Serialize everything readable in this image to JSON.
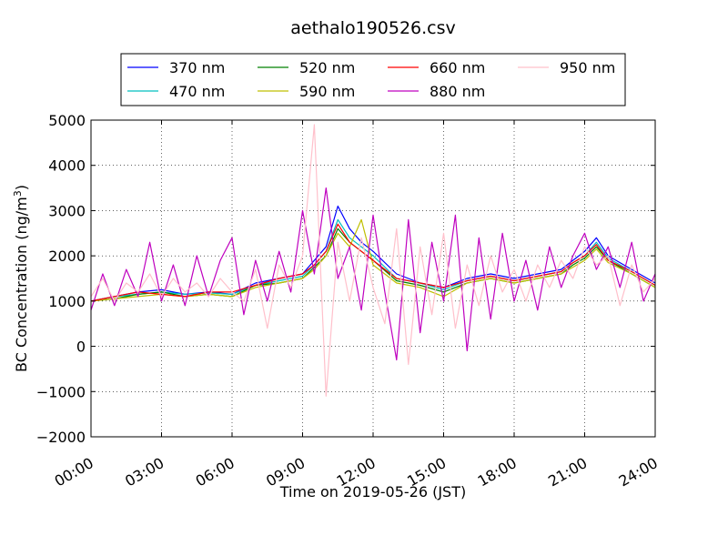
{
  "chart_data": {
    "type": "line",
    "title": "aethalo190526.csv",
    "xlabel": "Time on 2019-05-26 (JST)",
    "ylabel": "BC Concentration (ng/m³)",
    "ylabel_main": "BC Concentration (ng/m",
    "ylabel_sup": "3",
    "ylabel_end": ")",
    "xlim": [
      "00:00",
      "24:00"
    ],
    "ylim": [
      -2000,
      5000
    ],
    "x_ticks": [
      "00:00",
      "03:00",
      "06:00",
      "09:00",
      "12:00",
      "15:00",
      "18:00",
      "21:00",
      "24:00"
    ],
    "y_ticks": [
      -2000,
      -1000,
      0,
      1000,
      2000,
      3000,
      4000,
      5000
    ],
    "y_tick_labels": [
      "−2000",
      "−1000",
      "0",
      "1000",
      "2000",
      "3000",
      "4000",
      "5000"
    ],
    "grid": true,
    "legend_placement": "above plot, centered",
    "series": [
      {
        "name": "370 nm",
        "color": "#0000ff",
        "x": [
          "00:00",
          "01:00",
          "02:00",
          "03:00",
          "04:00",
          "05:00",
          "06:00",
          "07:00",
          "08:00",
          "09:00",
          "09:30",
          "10:00",
          "10:30",
          "11:00",
          "11:30",
          "12:00",
          "13:00",
          "14:00",
          "15:00",
          "16:00",
          "17:00",
          "18:00",
          "19:00",
          "20:00",
          "20:30",
          "21:00",
          "21:30",
          "22:00",
          "23:00",
          "24:00"
        ],
        "y": [
          1000,
          1100,
          1200,
          1250,
          1150,
          1200,
          1150,
          1400,
          1500,
          1600,
          1900,
          2200,
          3100,
          2600,
          2300,
          2100,
          1600,
          1400,
          1300,
          1500,
          1600,
          1500,
          1600,
          1700,
          1900,
          2100,
          2400,
          2000,
          1700,
          1400
        ]
      },
      {
        "name": "470 nm",
        "color": "#00bfbf",
        "x": [
          "00:00",
          "01:00",
          "02:00",
          "03:00",
          "04:00",
          "05:00",
          "06:00",
          "07:00",
          "08:00",
          "09:00",
          "09:30",
          "10:00",
          "10:30",
          "11:00",
          "11:30",
          "12:00",
          "13:00",
          "14:00",
          "15:00",
          "16:00",
          "17:00",
          "18:00",
          "19:00",
          "20:00",
          "20:30",
          "21:00",
          "21:30",
          "22:00",
          "23:00",
          "24:00"
        ],
        "y": [
          1000,
          1100,
          1150,
          1200,
          1150,
          1180,
          1150,
          1350,
          1450,
          1550,
          1800,
          2100,
          2800,
          2400,
          2200,
          2000,
          1500,
          1400,
          1250,
          1450,
          1550,
          1450,
          1550,
          1650,
          1850,
          2000,
          2300,
          1950,
          1650,
          1350
        ]
      },
      {
        "name": "520 nm",
        "color": "#008000",
        "x": [
          "00:00",
          "01:00",
          "02:00",
          "03:00",
          "04:00",
          "05:00",
          "06:00",
          "07:00",
          "08:00",
          "09:00",
          "09:30",
          "10:00",
          "10:30",
          "11:00",
          "11:30",
          "12:00",
          "13:00",
          "14:00",
          "15:00",
          "16:00",
          "17:00",
          "18:00",
          "19:00",
          "20:00",
          "20:30",
          "21:00",
          "21:30",
          "22:00",
          "23:00",
          "24:00"
        ],
        "y": [
          1000,
          1050,
          1150,
          1200,
          1100,
          1150,
          1100,
          1350,
          1400,
          1500,
          1750,
          2000,
          2600,
          2300,
          2100,
          1900,
          1450,
          1350,
          1200,
          1400,
          1500,
          1400,
          1500,
          1600,
          1800,
          1950,
          2200,
          1900,
          1600,
          1300
        ]
      },
      {
        "name": "590 nm",
        "color": "#bfbf00",
        "x": [
          "00:00",
          "01:00",
          "02:00",
          "03:00",
          "04:00",
          "05:00",
          "06:00",
          "07:00",
          "08:00",
          "09:00",
          "09:30",
          "10:00",
          "10:30",
          "11:00",
          "11:30",
          "12:00",
          "13:00",
          "14:00",
          "15:00",
          "16:00",
          "17:00",
          "18:00",
          "19:00",
          "20:00",
          "20:30",
          "21:00",
          "21:30",
          "22:00",
          "23:00",
          "24:00"
        ],
        "y": [
          1000,
          1050,
          1100,
          1150,
          1100,
          1150,
          1100,
          1300,
          1400,
          1500,
          1700,
          2000,
          2500,
          2200,
          2800,
          1800,
          1400,
          1300,
          1100,
          1400,
          1500,
          1400,
          1500,
          1600,
          1750,
          1900,
          2150,
          1850,
          1600,
          1300
        ]
      },
      {
        "name": "660 nm",
        "color": "#ff0000",
        "x": [
          "00:00",
          "01:00",
          "02:00",
          "03:00",
          "04:00",
          "05:00",
          "06:00",
          "07:00",
          "08:00",
          "09:00",
          "09:30",
          "10:00",
          "10:30",
          "11:00",
          "11:30",
          "12:00",
          "13:00",
          "14:00",
          "15:00",
          "16:00",
          "17:00",
          "18:00",
          "19:00",
          "20:00",
          "20:30",
          "21:00",
          "21:30",
          "22:00",
          "23:00",
          "24:00"
        ],
        "y": [
          1000,
          1100,
          1200,
          1150,
          1100,
          1200,
          1200,
          1350,
          1500,
          1600,
          1800,
          2100,
          2700,
          2300,
          2100,
          1900,
          1500,
          1400,
          1300,
          1450,
          1550,
          1450,
          1550,
          1650,
          1850,
          2000,
          2250,
          1900,
          1650,
          1350
        ]
      },
      {
        "name": "880 nm",
        "color": "#bf00bf",
        "x": [
          "00:00",
          "00:30",
          "01:00",
          "01:30",
          "02:00",
          "02:30",
          "03:00",
          "03:30",
          "04:00",
          "04:30",
          "05:00",
          "05:30",
          "06:00",
          "06:30",
          "07:00",
          "07:30",
          "08:00",
          "08:30",
          "09:00",
          "09:30",
          "10:00",
          "10:30",
          "11:00",
          "11:30",
          "12:00",
          "12:30",
          "13:00",
          "13:30",
          "14:00",
          "14:30",
          "15:00",
          "15:30",
          "16:00",
          "16:30",
          "17:00",
          "17:30",
          "18:00",
          "18:30",
          "19:00",
          "19:30",
          "20:00",
          "20:30",
          "21:00",
          "21:30",
          "22:00",
          "22:30",
          "23:00",
          "23:30",
          "24:00"
        ],
        "y": [
          800,
          1600,
          900,
          1700,
          1100,
          2300,
          1000,
          1800,
          900,
          2000,
          1100,
          1900,
          2400,
          700,
          1900,
          1000,
          2100,
          1200,
          3000,
          1600,
          3500,
          1500,
          2200,
          800,
          2900,
          1200,
          -300,
          2800,
          300,
          2300,
          1000,
          2900,
          -100,
          2400,
          600,
          2500,
          1000,
          1900,
          800,
          2200,
          1300,
          2000,
          2500,
          1700,
          2200,
          1300,
          2300,
          1000,
          1600
        ]
      },
      {
        "name": "950 nm",
        "color": "#ffc0cb",
        "x": [
          "00:00",
          "00:30",
          "01:00",
          "01:30",
          "02:00",
          "02:30",
          "03:00",
          "03:30",
          "04:00",
          "04:30",
          "05:00",
          "05:30",
          "06:00",
          "06:30",
          "07:00",
          "07:30",
          "08:00",
          "08:30",
          "09:00",
          "09:30",
          "10:00",
          "10:30",
          "11:00",
          "11:30",
          "12:00",
          "12:30",
          "13:00",
          "13:30",
          "14:00",
          "14:30",
          "15:00",
          "15:30",
          "16:00",
          "16:30",
          "17:00",
          "17:30",
          "18:00",
          "18:30",
          "19:00",
          "19:30",
          "20:00",
          "20:30",
          "21:00",
          "21:30",
          "22:00",
          "22:30",
          "23:00",
          "23:30",
          "24:00"
        ],
        "y": [
          1100,
          1500,
          1000,
          1400,
          1200,
          1600,
          1100,
          1500,
          1200,
          1400,
          1100,
          1500,
          1200,
          1000,
          1700,
          400,
          1800,
          1300,
          2000,
          4900,
          -1100,
          2300,
          1000,
          2400,
          1300,
          500,
          2600,
          -400,
          2200,
          700,
          2500,
          400,
          1800,
          900,
          2000,
          1200,
          1700,
          1000,
          1800,
          1300,
          1900,
          1500,
          2200,
          1800,
          2000,
          900,
          1800,
          1200,
          1500
        ]
      }
    ]
  }
}
